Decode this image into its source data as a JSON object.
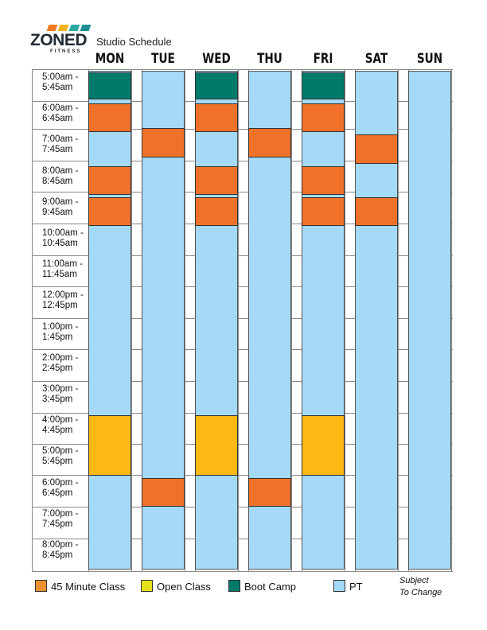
{
  "brand": {
    "name": "ZONED",
    "sub": "FITNESS",
    "bar_colors": [
      "#f07a22",
      "#f3b320",
      "#2aa9a0",
      "#1d8f95"
    ]
  },
  "title": "Studio Schedule",
  "days": [
    "MON",
    "TUE",
    "WED",
    "THU",
    "FRI",
    "SAT",
    "SUN"
  ],
  "slots": [
    [
      "5:00am -",
      "5:45am"
    ],
    [
      "6:00am -",
      "6:45am"
    ],
    [
      "7:00am -",
      "7:45am"
    ],
    [
      "8:00am -",
      "8:45am"
    ],
    [
      "9:00am -",
      "9:45am"
    ],
    [
      "10:00am -",
      "10:45am"
    ],
    [
      "11:00am -",
      "11:45am"
    ],
    [
      "12:00pm -",
      "12:45pm"
    ],
    [
      "1:00pm -",
      "1:45pm"
    ],
    [
      "2:00pm -",
      "2:45pm"
    ],
    [
      "3:00pm -",
      "3:45pm"
    ],
    [
      "4:00pm -",
      "4:45pm"
    ],
    [
      "5:00pm -",
      "5:45pm"
    ],
    [
      "6:00pm -",
      "6:45pm"
    ],
    [
      "7:00pm -",
      "7:45pm"
    ],
    [
      "8:00pm -",
      "8:45pm"
    ]
  ],
  "colors": {
    "pt": "#a4d9f7",
    "class45": "#f0722a",
    "open": "#fcb814",
    "boot": "#007a6b"
  },
  "schedule": [
    {
      "day": "MON",
      "slot": 0,
      "type": "boot"
    },
    {
      "day": "MON",
      "slot": 1,
      "type": "class45"
    },
    {
      "day": "MON",
      "slot": 3,
      "type": "class45"
    },
    {
      "day": "MON",
      "slot": 4,
      "type": "class45"
    },
    {
      "day": "MON",
      "slot": 11,
      "span": 2,
      "type": "open"
    },
    {
      "day": "TUE",
      "slot": 2,
      "type": "class45"
    },
    {
      "day": "TUE",
      "slot": 13,
      "type": "class45"
    },
    {
      "day": "WED",
      "slot": 0,
      "type": "boot"
    },
    {
      "day": "WED",
      "slot": 1,
      "type": "class45"
    },
    {
      "day": "WED",
      "slot": 3,
      "type": "class45"
    },
    {
      "day": "WED",
      "slot": 4,
      "type": "class45"
    },
    {
      "day": "WED",
      "slot": 11,
      "span": 2,
      "type": "open"
    },
    {
      "day": "THU",
      "slot": 2,
      "type": "class45"
    },
    {
      "day": "THU",
      "slot": 13,
      "type": "class45"
    },
    {
      "day": "FRI",
      "slot": 0,
      "type": "boot"
    },
    {
      "day": "FRI",
      "slot": 1,
      "type": "class45"
    },
    {
      "day": "FRI",
      "slot": 3,
      "type": "class45"
    },
    {
      "day": "FRI",
      "slot": 4,
      "type": "class45"
    },
    {
      "day": "FRI",
      "slot": 11,
      "span": 2,
      "type": "open"
    },
    {
      "day": "SAT",
      "slot": 2,
      "type": "class45"
    },
    {
      "day": "SAT",
      "slot": 4,
      "type": "class45"
    }
  ],
  "legend": [
    {
      "label": "45 Minute Class",
      "color": "#e9922f"
    },
    {
      "label": "Open Class",
      "color": "#e6e01b"
    },
    {
      "label": "Boot Camp",
      "color": "#007a6b"
    },
    {
      "label": "PT",
      "color": "#a4d9f7"
    }
  ],
  "note": [
    "Subject",
    "To Change"
  ]
}
